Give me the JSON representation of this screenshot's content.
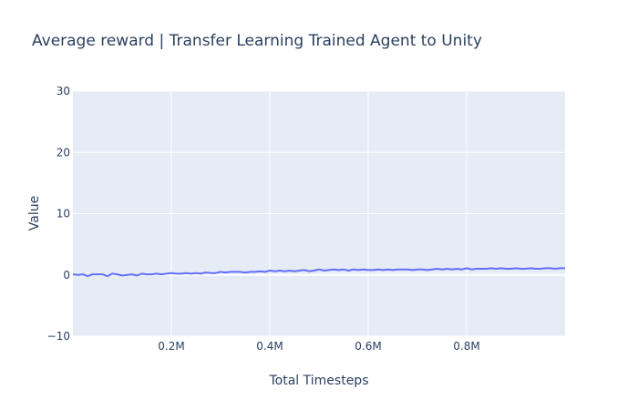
{
  "chart_data": {
    "type": "line",
    "title": "Average reward | Transfer Learning Trained Agent to Unity",
    "xlabel": "Total Timesteps",
    "ylabel": "Value",
    "xlim": [
      0,
      1000000
    ],
    "ylim": [
      -10,
      30
    ],
    "x_ticks": [
      200000,
      400000,
      600000,
      800000
    ],
    "x_tick_labels": [
      "0.2M",
      "0.4M",
      "0.6M",
      "0.8M"
    ],
    "y_ticks": [
      -10,
      0,
      10,
      20,
      30
    ],
    "y_tick_labels": [
      "−10",
      "0",
      "10",
      "20",
      "30"
    ],
    "grid": true,
    "plot_bg": "#e5ecf6",
    "line_color": "#636efa",
    "series": [
      {
        "x": [
          0,
          10000,
          20000,
          30000,
          40000,
          50000,
          60000,
          70000,
          80000,
          90000,
          100000,
          110000,
          120000,
          130000,
          140000,
          150000,
          160000,
          170000,
          180000,
          190000,
          200000,
          210000,
          220000,
          230000,
          240000,
          250000,
          260000,
          270000,
          280000,
          290000,
          300000,
          310000,
          320000,
          330000,
          340000,
          350000,
          360000,
          370000,
          380000,
          390000,
          400000,
          410000,
          420000,
          430000,
          440000,
          450000,
          460000,
          470000,
          480000,
          490000,
          500000,
          510000,
          520000,
          530000,
          540000,
          550000,
          560000,
          570000,
          580000,
          590000,
          600000,
          610000,
          620000,
          630000,
          640000,
          650000,
          660000,
          670000,
          680000,
          690000,
          700000,
          710000,
          720000,
          730000,
          740000,
          750000,
          760000,
          770000,
          780000,
          790000,
          800000,
          810000,
          820000,
          830000,
          840000,
          850000,
          860000,
          870000,
          880000,
          890000,
          900000,
          910000,
          920000,
          930000,
          940000,
          950000,
          960000,
          970000,
          980000,
          990000,
          1000000
        ],
        "y": [
          0.1,
          0.0,
          0.1,
          -0.2,
          0.1,
          0.1,
          0.1,
          -0.2,
          0.2,
          0.1,
          -0.1,
          0.0,
          0.1,
          -0.1,
          0.2,
          0.1,
          0.1,
          0.2,
          0.1,
          0.2,
          0.3,
          0.2,
          0.2,
          0.3,
          0.2,
          0.3,
          0.2,
          0.4,
          0.3,
          0.3,
          0.5,
          0.4,
          0.5,
          0.5,
          0.5,
          0.4,
          0.5,
          0.5,
          0.6,
          0.5,
          0.7,
          0.6,
          0.7,
          0.6,
          0.7,
          0.6,
          0.7,
          0.8,
          0.6,
          0.7,
          0.9,
          0.7,
          0.8,
          0.9,
          0.8,
          0.9,
          0.7,
          0.9,
          0.8,
          0.9,
          0.8,
          0.8,
          0.9,
          0.8,
          0.9,
          0.8,
          0.9,
          0.9,
          0.9,
          0.8,
          0.9,
          0.9,
          0.8,
          0.9,
          1.0,
          0.9,
          1.0,
          0.9,
          1.0,
          0.9,
          1.1,
          0.9,
          1.0,
          1.0,
          1.0,
          1.1,
          1.0,
          1.1,
          1.0,
          1.0,
          1.1,
          1.0,
          1.0,
          1.1,
          1.0,
          1.0,
          1.1,
          1.1,
          1.0,
          1.1,
          1.1
        ]
      }
    ]
  }
}
